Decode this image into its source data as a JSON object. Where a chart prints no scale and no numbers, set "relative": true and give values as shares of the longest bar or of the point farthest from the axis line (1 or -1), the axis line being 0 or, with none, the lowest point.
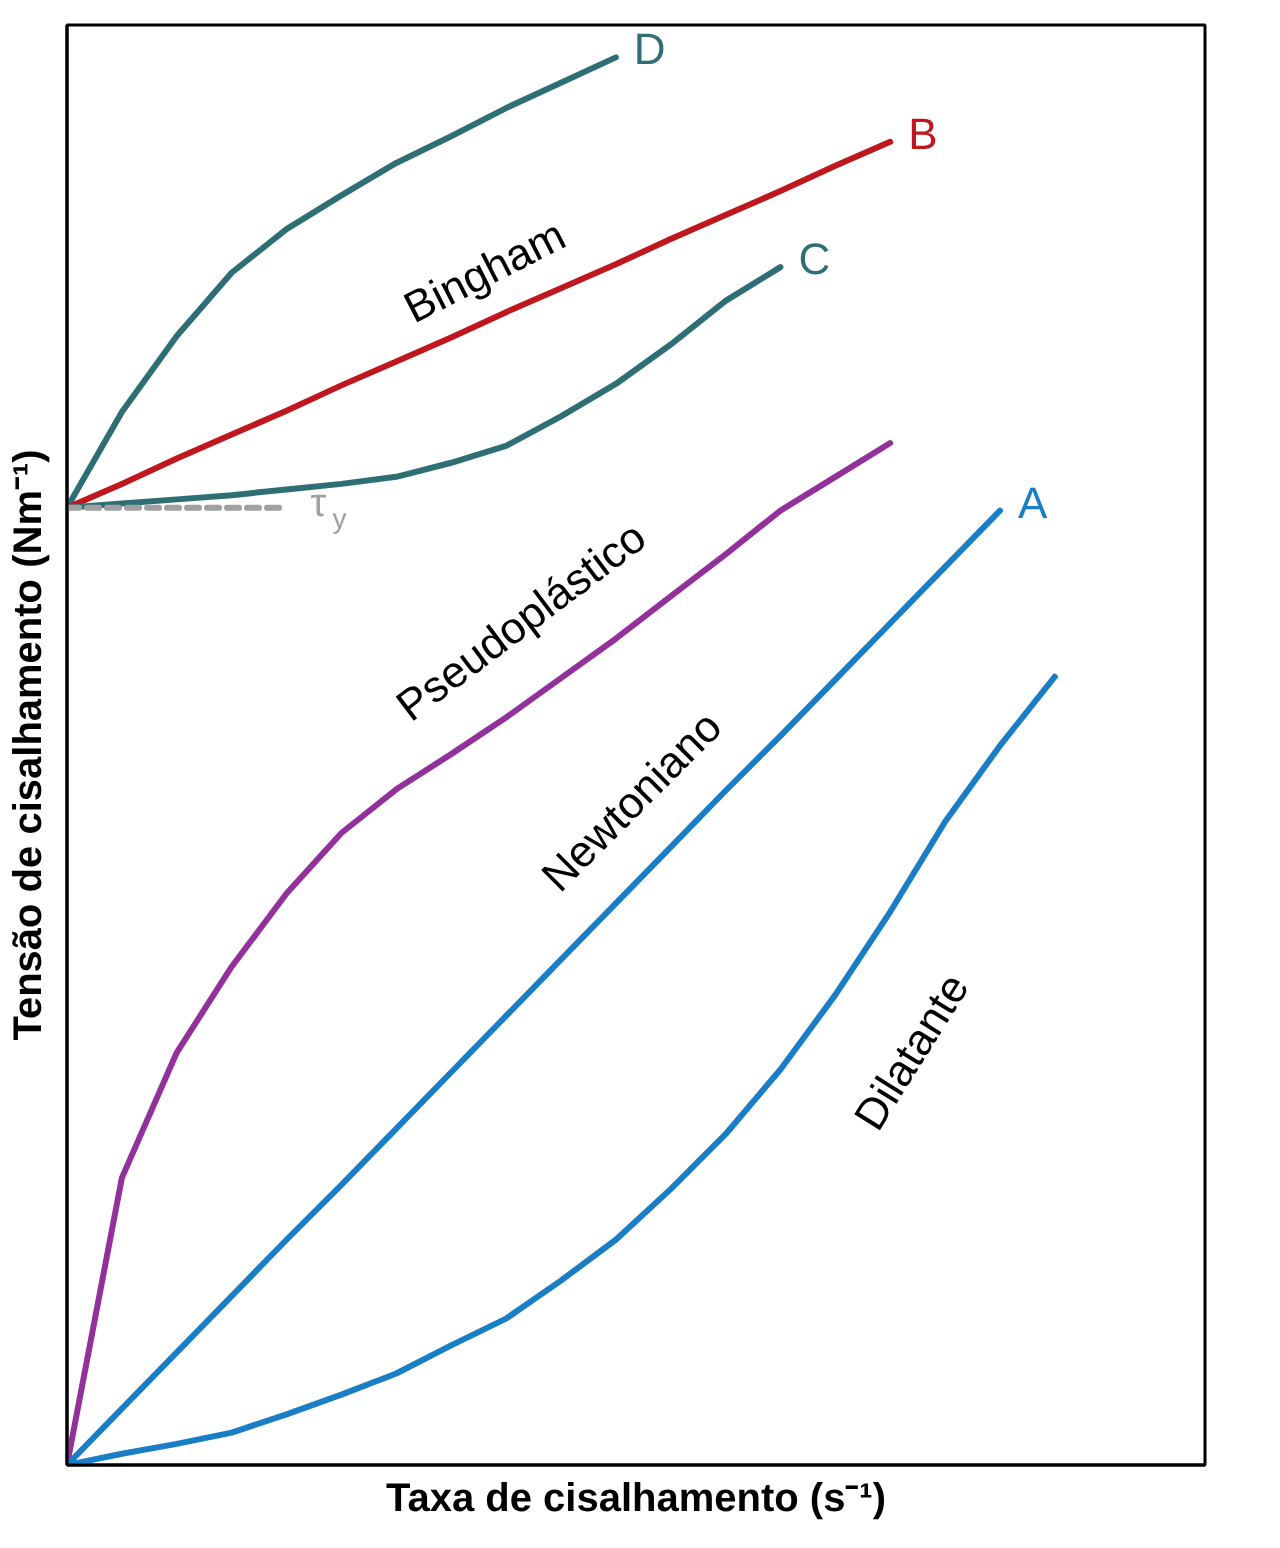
{
  "chart_data": {
    "type": "line",
    "relative": true,
    "xlabel": "Taxa de cisalhamento (s⁻¹)",
    "ylabel": "Tensão de cisalhamento (Nm⁻¹)",
    "categories": [
      null,
      null,
      null,
      null,
      null,
      null,
      null,
      null,
      null,
      null,
      null,
      null,
      null,
      null,
      null,
      null,
      null,
      null,
      null
    ],
    "series": [
      {
        "name": "D",
        "color": "#2e6e75",
        "values": [
          0.68,
          0.748,
          0.802,
          0.847,
          0.878,
          0.902,
          0.925,
          0.944,
          0.964,
          0.982,
          1.0,
          null,
          null,
          null,
          null,
          null,
          null,
          null,
          null
        ]
      },
      {
        "name": "B",
        "color": "#c0161e",
        "values": [
          0.68,
          0.697,
          0.715,
          0.732,
          0.749,
          0.767,
          0.784,
          0.801,
          0.819,
          0.836,
          0.853,
          0.871,
          0.888,
          0.905,
          0.923,
          0.94,
          null,
          null,
          null
        ]
      },
      {
        "name": "C",
        "color": "#2e6e75",
        "values": [
          0.68,
          0.683,
          0.686,
          0.689,
          0.693,
          0.697,
          0.702,
          0.712,
          0.724,
          0.745,
          0.768,
          0.796,
          0.827,
          0.851,
          null,
          null,
          null,
          null,
          null
        ]
      },
      {
        "name": "τ$_{y}$",
        "color": "#a0a0a0",
        "line_style": "dashed",
        "values": [
          0.68,
          0.68,
          0.68,
          0.68,
          0.68,
          null,
          null,
          null,
          null,
          null,
          null,
          null,
          null,
          null,
          null,
          null,
          null,
          null,
          null
        ]
      },
      {
        "color": "#92319b",
        "values": [
          0,
          0.204,
          0.293,
          0.354,
          0.406,
          0.449,
          0.48,
          0.505,
          0.531,
          0.559,
          0.587,
          0.617,
          0.647,
          0.678,
          0.702,
          0.726,
          null,
          null,
          null
        ]
      },
      {
        "name": "A",
        "color": "#1a7ec6",
        "values": [
          0,
          0.04,
          0.08,
          0.12,
          0.16,
          0.199,
          0.239,
          0.279,
          0.319,
          0.359,
          0.399,
          0.439,
          0.479,
          0.518,
          0.558,
          0.598,
          0.638,
          0.678,
          null
        ]
      },
      {
        "color": "#1a7ec6",
        "values": [
          0,
          0.008,
          0.015,
          0.023,
          0.036,
          0.05,
          0.065,
          0.085,
          0.104,
          0.131,
          0.16,
          0.196,
          0.235,
          0.281,
          0.334,
          0.393,
          0.457,
          0.511,
          0.56
        ]
      }
    ],
    "annotations": [
      "Bingham",
      "Pseudoplástico",
      "Newtoniano",
      "Dilatante"
    ]
  }
}
